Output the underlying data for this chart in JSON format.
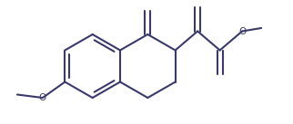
{
  "line_color": "#3a3a6a",
  "line_width": 1.5,
  "bg_color": "#ffffff",
  "figsize": [
    3.22,
    1.37
  ],
  "dpi": 100
}
